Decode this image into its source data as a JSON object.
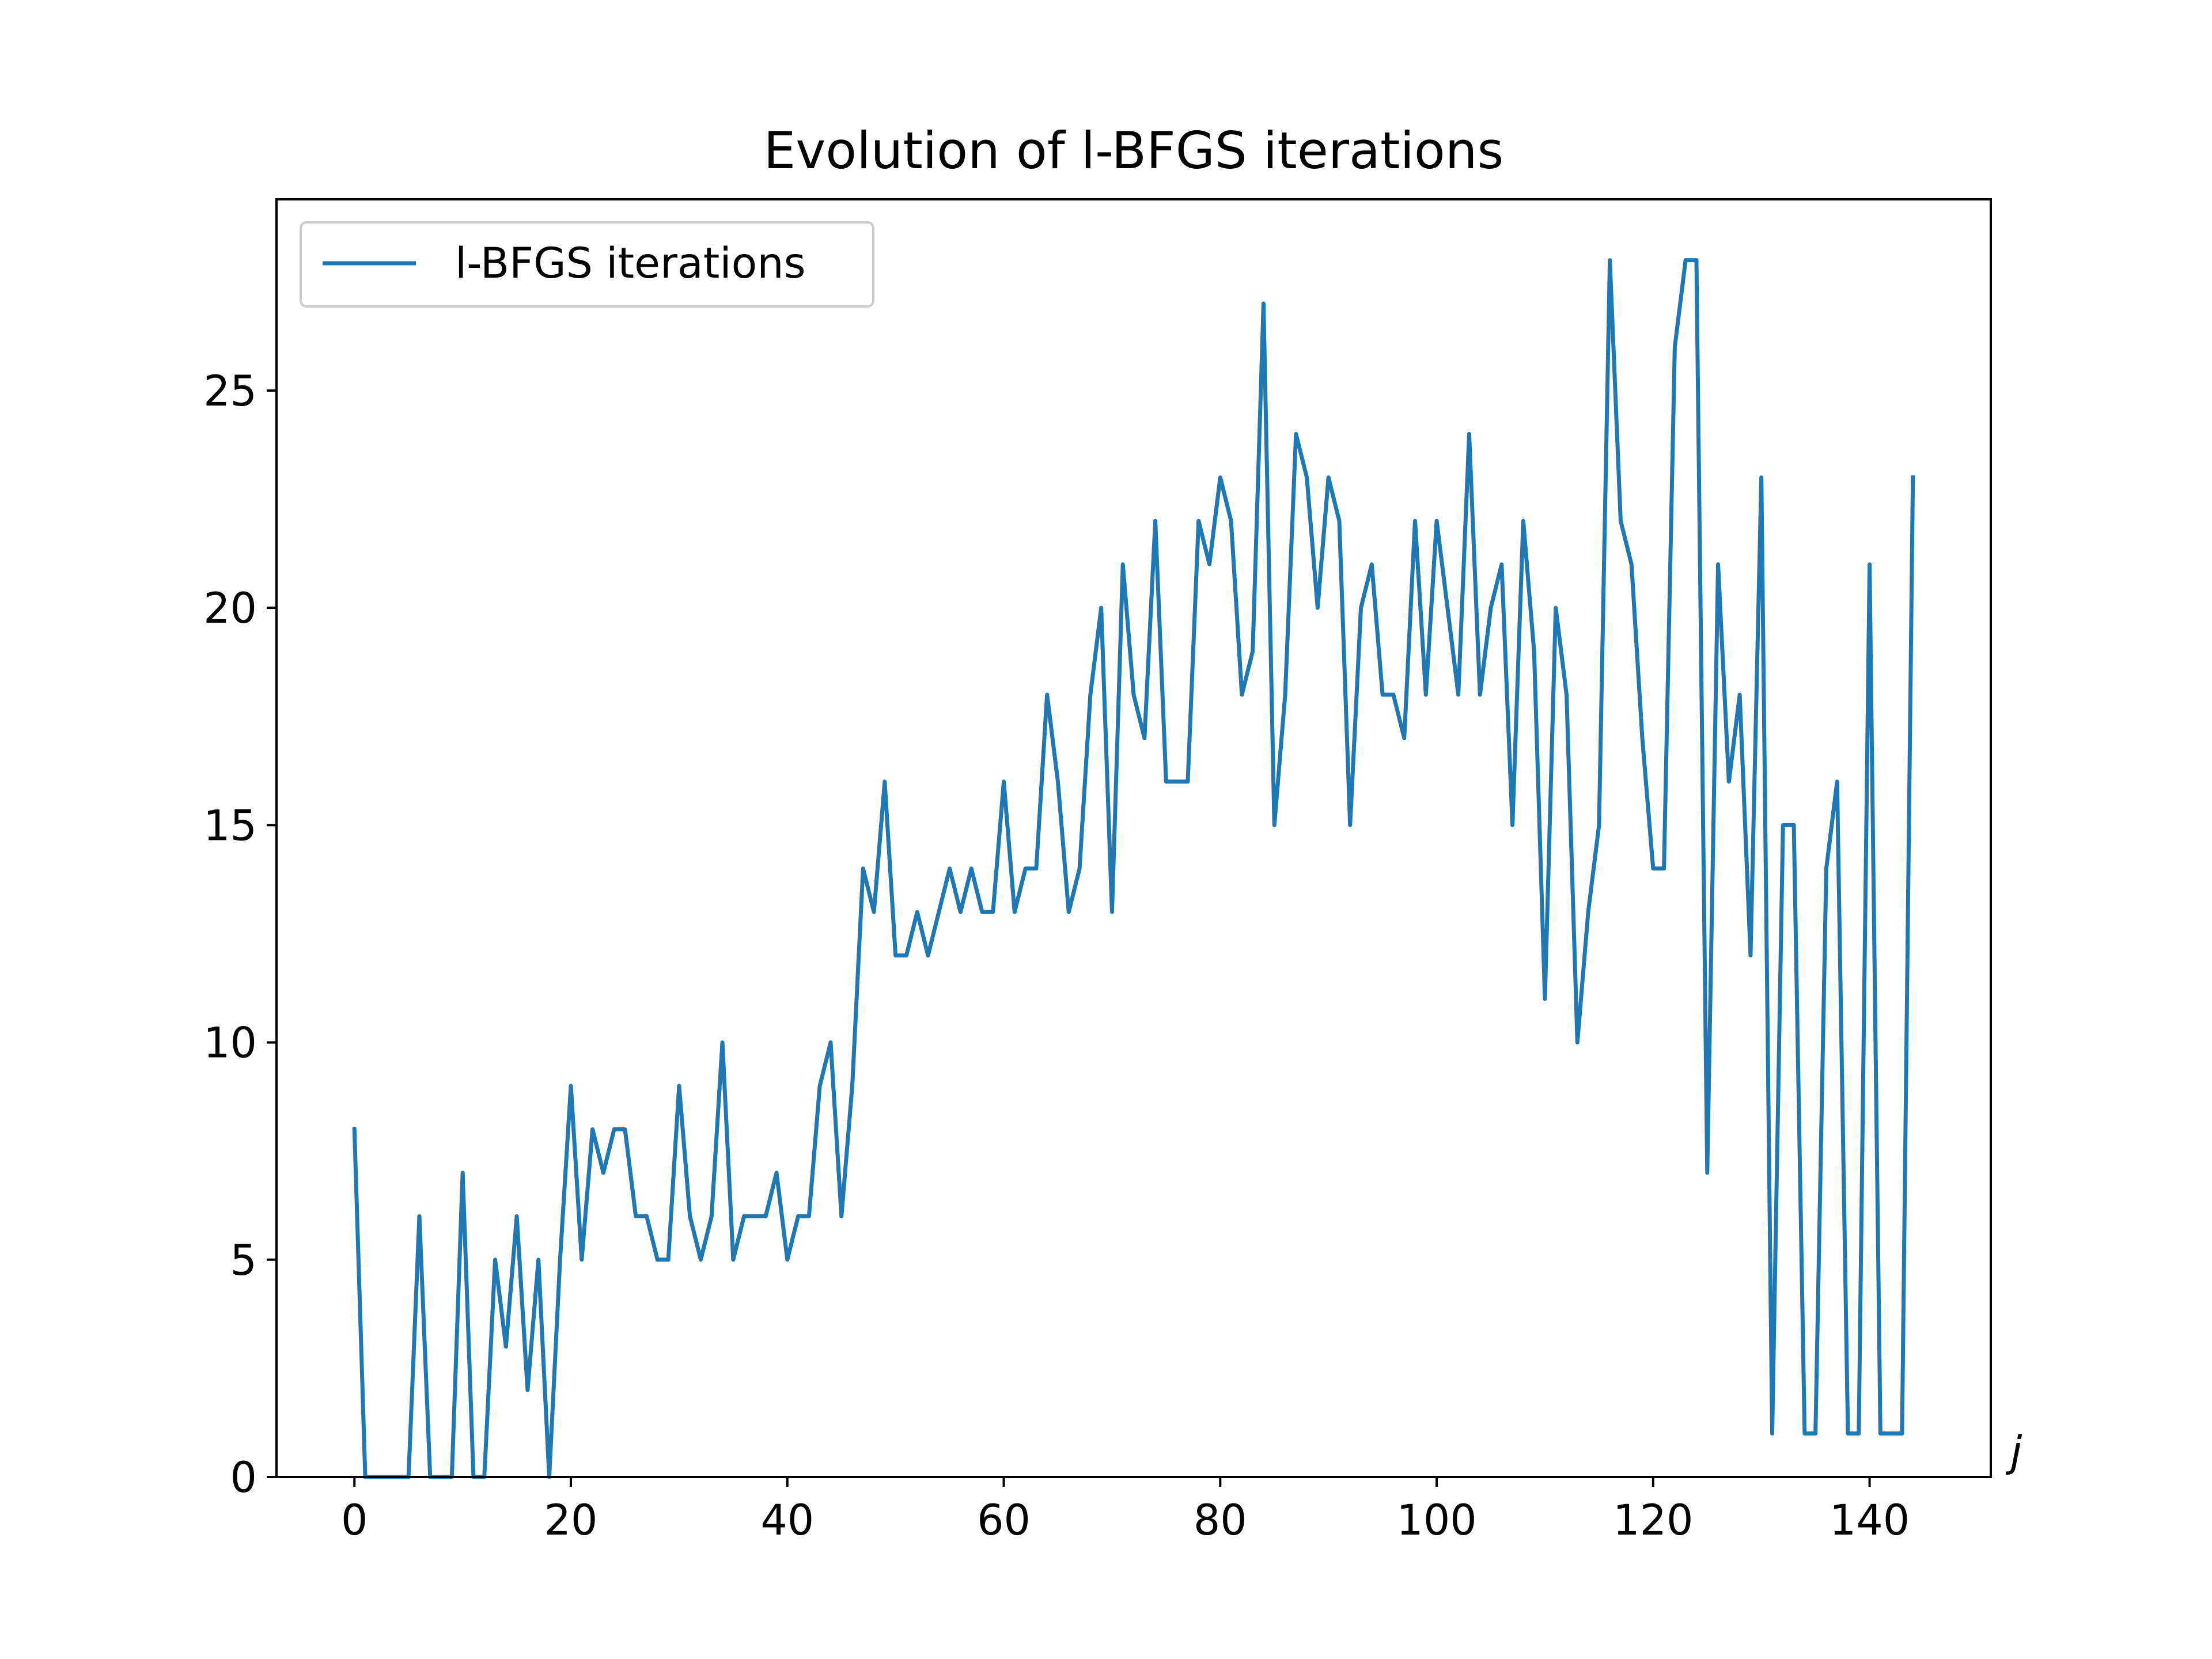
{
  "chart_data": {
    "type": "line",
    "title": "Evolution of l-BFGS iterations",
    "xlabel": "j",
    "ylabel": "",
    "xlim": [
      -7.2,
      151.2
    ],
    "ylim": [
      0,
      29.4
    ],
    "xticks": [
      0,
      20,
      40,
      60,
      80,
      100,
      120,
      140
    ],
    "yticks": [
      0,
      5,
      10,
      15,
      20,
      25
    ],
    "grid": false,
    "legend": {
      "position": "top-left"
    },
    "series": [
      {
        "name": "l-BFGS iterations",
        "color": "#1f77b4",
        "x": [
          0,
          1,
          2,
          3,
          4,
          5,
          6,
          7,
          8,
          9,
          10,
          11,
          12,
          13,
          14,
          15,
          16,
          17,
          18,
          19,
          20,
          21,
          22,
          23,
          24,
          25,
          26,
          27,
          28,
          29,
          30,
          31,
          32,
          33,
          34,
          35,
          36,
          37,
          38,
          39,
          40,
          41,
          42,
          43,
          44,
          45,
          46,
          47,
          48,
          49,
          50,
          51,
          52,
          53,
          54,
          55,
          56,
          57,
          58,
          59,
          60,
          61,
          62,
          63,
          64,
          65,
          66,
          67,
          68,
          69,
          70,
          71,
          72,
          73,
          74,
          75,
          76,
          77,
          78,
          79,
          80,
          81,
          82,
          83,
          84,
          85,
          86,
          87,
          88,
          89,
          90,
          91,
          92,
          93,
          94,
          95,
          96,
          97,
          98,
          99,
          100,
          101,
          102,
          103,
          104,
          105,
          106,
          107,
          108,
          109,
          110,
          111,
          112,
          113,
          114,
          115,
          116,
          117,
          118,
          119,
          120,
          121,
          122,
          123,
          124,
          125,
          126,
          127,
          128,
          129,
          130,
          131,
          132,
          133,
          134,
          135,
          136,
          137,
          138,
          139,
          140,
          141,
          142,
          143,
          144
        ],
        "y": [
          8,
          0,
          0,
          0,
          0,
          0,
          6,
          0,
          0,
          0,
          7,
          0,
          0,
          5,
          3,
          6,
          2,
          5,
          0,
          5,
          9,
          5,
          8,
          7,
          8,
          8,
          6,
          6,
          5,
          5,
          9,
          6,
          5,
          6,
          10,
          5,
          6,
          6,
          6,
          7,
          5,
          6,
          6,
          9,
          10,
          6,
          9,
          14,
          13,
          16,
          12,
          12,
          13,
          12,
          13,
          14,
          13,
          14,
          13,
          13,
          16,
          13,
          14,
          14,
          18,
          16,
          13,
          14,
          18,
          20,
          13,
          21,
          18,
          17,
          22,
          16,
          16,
          16,
          22,
          21,
          23,
          22,
          18,
          19,
          27,
          15,
          18,
          24,
          23,
          20,
          23,
          22,
          15,
          20,
          21,
          18,
          18,
          17,
          22,
          18,
          22,
          20,
          18,
          24,
          18,
          20,
          21,
          15,
          22,
          19,
          11,
          20,
          18,
          10,
          13,
          15,
          28,
          22,
          21,
          17,
          14,
          14,
          26,
          28,
          28,
          7,
          21,
          16,
          18,
          12,
          23,
          1,
          15,
          15,
          1,
          1,
          14,
          16,
          1,
          1,
          21,
          1,
          1,
          1,
          23
        ]
      }
    ]
  }
}
